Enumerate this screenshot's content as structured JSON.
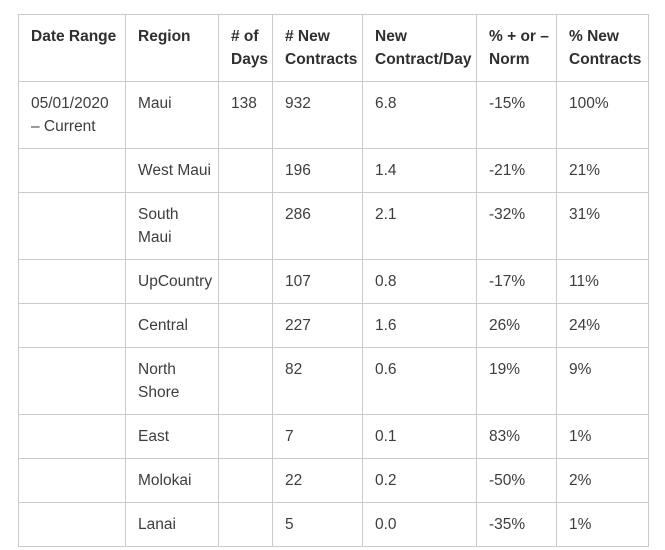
{
  "chart_data": {
    "type": "table",
    "columns": [
      "Date Range",
      "Region",
      "# of Days",
      "# New Contracts",
      "New Contract/Day",
      "% + or – Norm",
      "% New Contracts"
    ],
    "rows": [
      [
        "05/01/2020 – Current",
        "Maui",
        "138",
        "932",
        "6.8",
        "-15%",
        "100%"
      ],
      [
        "",
        "West Maui",
        "",
        "196",
        "1.4",
        "-21%",
        "21%"
      ],
      [
        "",
        "South Maui",
        "",
        "286",
        "2.1",
        "-32%",
        "31%"
      ],
      [
        "",
        "UpCountry",
        "",
        "107",
        "0.8",
        "-17%",
        "11%"
      ],
      [
        "",
        "Central",
        "",
        "227",
        "1.6",
        "26%",
        "24%"
      ],
      [
        "",
        "North Shore",
        "",
        "82",
        "0.6",
        "19%",
        "9%"
      ],
      [
        "",
        "East",
        "",
        "7",
        "0.1",
        "83%",
        "1%"
      ],
      [
        "",
        "Molokai",
        "",
        "22",
        "0.2",
        "-50%",
        "2%"
      ],
      [
        "",
        "Lanai",
        "",
        "5",
        "0.0",
        "-35%",
        "1%"
      ]
    ]
  },
  "colors": {
    "border": "#cbcbcb",
    "header_text": "#2f2f2f",
    "body_text": "#3d3d3d",
    "background": "#ffffff"
  }
}
